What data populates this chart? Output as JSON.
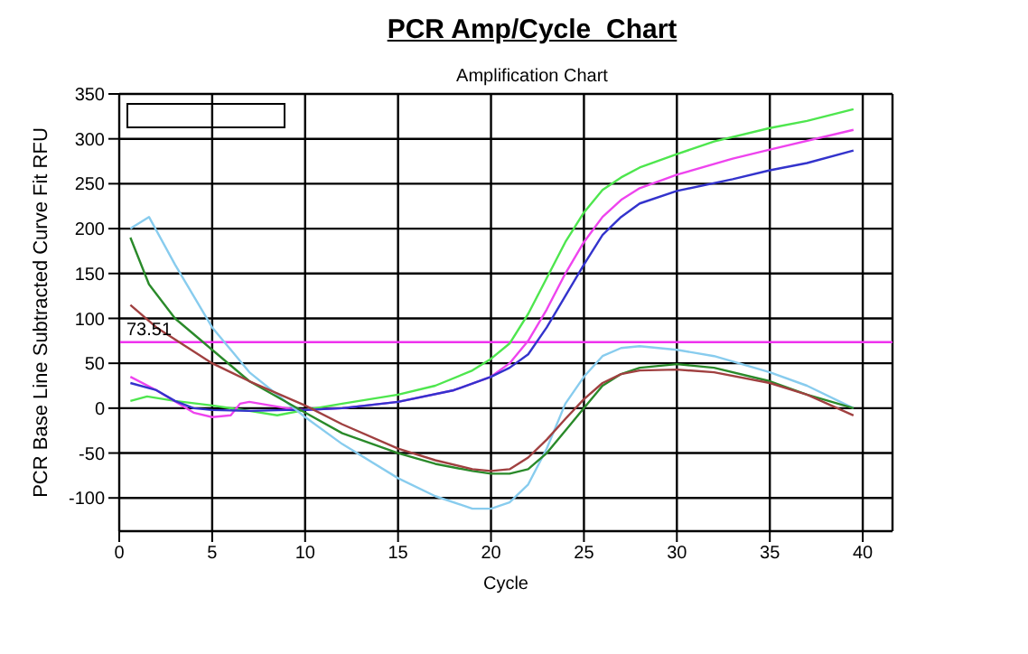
{
  "chart_data": {
    "type": "line",
    "title": "PCR Amp/Cycle  Chart",
    "subtitle": "Amplification Chart",
    "xlabel": "Cycle",
    "ylabel": "PCR Base Line Subtracted Curve Fit RFU",
    "xlim": [
      0,
      41.6
    ],
    "xticks": [
      0,
      5,
      10,
      15,
      20,
      25,
      30,
      35,
      40
    ],
    "ylim": [
      -137,
      350
    ],
    "yticks": [
      -100,
      -50,
      0,
      50,
      100,
      150,
      200,
      250,
      300,
      350
    ],
    "grid": true,
    "marker": "none",
    "line_style": "solid",
    "ref_lines": [
      {
        "axis": "y",
        "value": 73.51,
        "label": "73.51",
        "color": "#ee33ee"
      }
    ],
    "series": [
      {
        "color": "#4ee64e",
        "x": [
          0.6,
          1.5,
          3,
          5,
          7,
          8.5,
          10,
          12,
          15,
          17,
          19,
          20,
          21,
          22,
          23,
          24,
          25,
          26,
          27,
          28,
          30,
          32,
          35,
          37,
          39.5
        ],
        "values": [
          8,
          13,
          8,
          3,
          -3,
          -8,
          -2,
          5,
          15,
          25,
          42,
          55,
          72,
          105,
          145,
          185,
          218,
          243,
          257,
          268,
          283,
          297,
          312,
          320,
          333
        ]
      },
      {
        "color": "#ee44ee",
        "x": [
          0.6,
          2,
          4,
          5,
          6,
          6.5,
          7,
          9,
          10,
          12,
          15,
          18,
          20,
          21,
          22,
          23,
          24,
          25,
          26,
          27,
          28,
          30,
          33,
          35,
          39.5
        ],
        "values": [
          35,
          20,
          -5,
          -10,
          -8,
          5,
          7,
          0,
          -2,
          0,
          7,
          20,
          35,
          50,
          75,
          110,
          150,
          185,
          213,
          232,
          245,
          260,
          278,
          288,
          310
        ]
      },
      {
        "color": "#3333cc",
        "x": [
          0.6,
          2,
          3,
          4,
          5,
          7,
          9,
          10,
          12,
          15,
          18,
          20,
          21,
          22,
          23,
          24,
          25,
          26,
          27,
          28,
          30,
          33,
          35,
          37,
          39.5
        ],
        "values": [
          28,
          20,
          8,
          0,
          -2,
          -3,
          -2,
          -2,
          0,
          7,
          20,
          35,
          45,
          60,
          90,
          125,
          160,
          193,
          213,
          228,
          242,
          255,
          265,
          273,
          287
        ]
      },
      {
        "color": "#88ccee",
        "x": [
          0.6,
          1.6,
          3,
          5,
          7,
          10,
          12,
          15,
          17,
          19,
          20,
          21,
          22,
          23,
          24,
          25,
          26,
          27,
          28,
          30,
          32,
          35,
          37,
          39.5
        ],
        "values": [
          200,
          213,
          160,
          90,
          40,
          -10,
          -40,
          -78,
          -98,
          -112,
          -112,
          -105,
          -85,
          -45,
          5,
          35,
          58,
          67,
          69,
          65,
          58,
          40,
          25,
          0
        ]
      },
      {
        "color": "#2a8a2a",
        "x": [
          0.6,
          1.6,
          3,
          5,
          7,
          10,
          12,
          15,
          17,
          19,
          20,
          21,
          22,
          23,
          24,
          25,
          26,
          27,
          28,
          30,
          32,
          35,
          37,
          39.5
        ],
        "values": [
          190,
          138,
          100,
          65,
          30,
          -5,
          -28,
          -50,
          -62,
          -70,
          -73,
          -73,
          -68,
          -50,
          -25,
          0,
          25,
          38,
          45,
          49,
          45,
          30,
          15,
          0
        ]
      },
      {
        "color": "#a04040",
        "x": [
          0.6,
          2,
          5,
          7,
          10,
          12,
          15,
          17,
          19,
          20,
          21,
          22,
          23,
          24,
          25,
          26,
          27,
          28,
          30,
          32,
          35,
          37,
          39.5
        ],
        "values": [
          115,
          90,
          50,
          30,
          3,
          -18,
          -45,
          -58,
          -68,
          -70,
          -68,
          -55,
          -35,
          -12,
          10,
          28,
          38,
          42,
          43,
          40,
          28,
          15,
          -8
        ]
      }
    ]
  }
}
